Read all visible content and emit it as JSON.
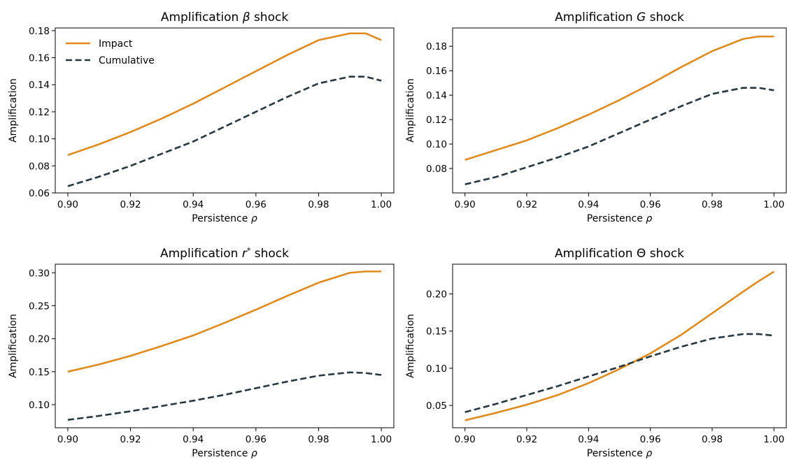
{
  "chart_data": [
    {
      "type": "line",
      "title": "Amplification β shock",
      "xlabel": "Persistence ρ",
      "ylabel": "Amplification",
      "xlim": [
        0.896,
        1.004
      ],
      "ylim": [
        0.06,
        0.182
      ],
      "xticks": [
        "0.90",
        "0.92",
        "0.94",
        "0.96",
        "0.98",
        "1.00"
      ],
      "yticks": [
        "0.06",
        "0.08",
        "0.10",
        "0.12",
        "0.14",
        "0.16",
        "0.18"
      ],
      "legend": "top-left",
      "x": [
        0.9,
        0.91,
        0.92,
        0.93,
        0.94,
        0.95,
        0.96,
        0.97,
        0.98,
        0.99,
        0.995,
        1.0
      ],
      "series": [
        {
          "name": "Impact",
          "color": "#e08a1e",
          "dash": "solid",
          "values": [
            0.088,
            0.096,
            0.105,
            0.115,
            0.126,
            0.138,
            0.15,
            0.162,
            0.173,
            0.178,
            0.178,
            0.173
          ]
        },
        {
          "name": "Cumulative",
          "color": "#25383f",
          "dash": "dashed",
          "values": [
            0.065,
            0.072,
            0.08,
            0.089,
            0.098,
            0.109,
            0.12,
            0.131,
            0.141,
            0.146,
            0.146,
            0.143
          ]
        }
      ]
    },
    {
      "type": "line",
      "title": "Amplification G shock",
      "xlabel": "Persistence ρ",
      "ylabel": "Amplification",
      "xlim": [
        0.896,
        1.004
      ],
      "ylim": [
        0.06,
        0.195
      ],
      "xticks": [
        "0.90",
        "0.92",
        "0.94",
        "0.96",
        "0.98",
        "1.00"
      ],
      "yticks": [
        "0.08",
        "0.10",
        "0.12",
        "0.14",
        "0.16",
        "0.18"
      ],
      "x": [
        0.9,
        0.91,
        0.92,
        0.93,
        0.94,
        0.95,
        0.96,
        0.97,
        0.98,
        0.99,
        0.995,
        1.0
      ],
      "series": [
        {
          "name": "Impact",
          "color": "#e08a1e",
          "dash": "solid",
          "values": [
            0.087,
            0.095,
            0.103,
            0.113,
            0.124,
            0.136,
            0.149,
            0.163,
            0.176,
            0.186,
            0.188,
            0.188
          ]
        },
        {
          "name": "Cumulative",
          "color": "#25383f",
          "dash": "dashed",
          "values": [
            0.067,
            0.073,
            0.081,
            0.089,
            0.098,
            0.109,
            0.12,
            0.131,
            0.141,
            0.146,
            0.146,
            0.144
          ]
        }
      ]
    },
    {
      "type": "line",
      "title": "Amplification r* shock",
      "xlabel": "Persistence ρ",
      "ylabel": "Amplification",
      "xlim": [
        0.896,
        1.004
      ],
      "ylim": [
        0.065,
        0.313
      ],
      "xticks": [
        "0.90",
        "0.92",
        "0.94",
        "0.96",
        "0.98",
        "1.00"
      ],
      "yticks": [
        "0.10",
        "0.15",
        "0.20",
        "0.25",
        "0.30"
      ],
      "x": [
        0.9,
        0.91,
        0.92,
        0.93,
        0.94,
        0.95,
        0.96,
        0.97,
        0.98,
        0.99,
        0.995,
        1.0
      ],
      "series": [
        {
          "name": "Impact",
          "color": "#e08a1e",
          "dash": "solid",
          "values": [
            0.15,
            0.161,
            0.174,
            0.189,
            0.205,
            0.224,
            0.244,
            0.265,
            0.285,
            0.3,
            0.302,
            0.302
          ]
        },
        {
          "name": "Cumulative",
          "color": "#25383f",
          "dash": "dashed",
          "values": [
            0.077,
            0.083,
            0.09,
            0.098,
            0.106,
            0.115,
            0.125,
            0.135,
            0.144,
            0.149,
            0.148,
            0.145
          ]
        }
      ]
    },
    {
      "type": "line",
      "title": "Amplification Θ shock",
      "xlabel": "Persistence ρ",
      "ylabel": "Amplification",
      "xlim": [
        0.896,
        1.004
      ],
      "ylim": [
        0.02,
        0.24
      ],
      "xticks": [
        "0.90",
        "0.92",
        "0.94",
        "0.96",
        "0.98",
        "1.00"
      ],
      "yticks": [
        "0.05",
        "0.10",
        "0.15",
        "0.20"
      ],
      "x": [
        0.9,
        0.91,
        0.92,
        0.93,
        0.94,
        0.95,
        0.96,
        0.97,
        0.98,
        0.99,
        0.995,
        1.0
      ],
      "series": [
        {
          "name": "Impact",
          "color": "#e08a1e",
          "dash": "solid",
          "values": [
            0.03,
            0.04,
            0.051,
            0.064,
            0.08,
            0.099,
            0.12,
            0.145,
            0.174,
            0.203,
            0.217,
            0.23
          ]
        },
        {
          "name": "Cumulative",
          "color": "#25383f",
          "dash": "dashed",
          "values": [
            0.041,
            0.052,
            0.064,
            0.076,
            0.089,
            0.102,
            0.116,
            0.129,
            0.14,
            0.146,
            0.146,
            0.144
          ]
        }
      ]
    }
  ]
}
